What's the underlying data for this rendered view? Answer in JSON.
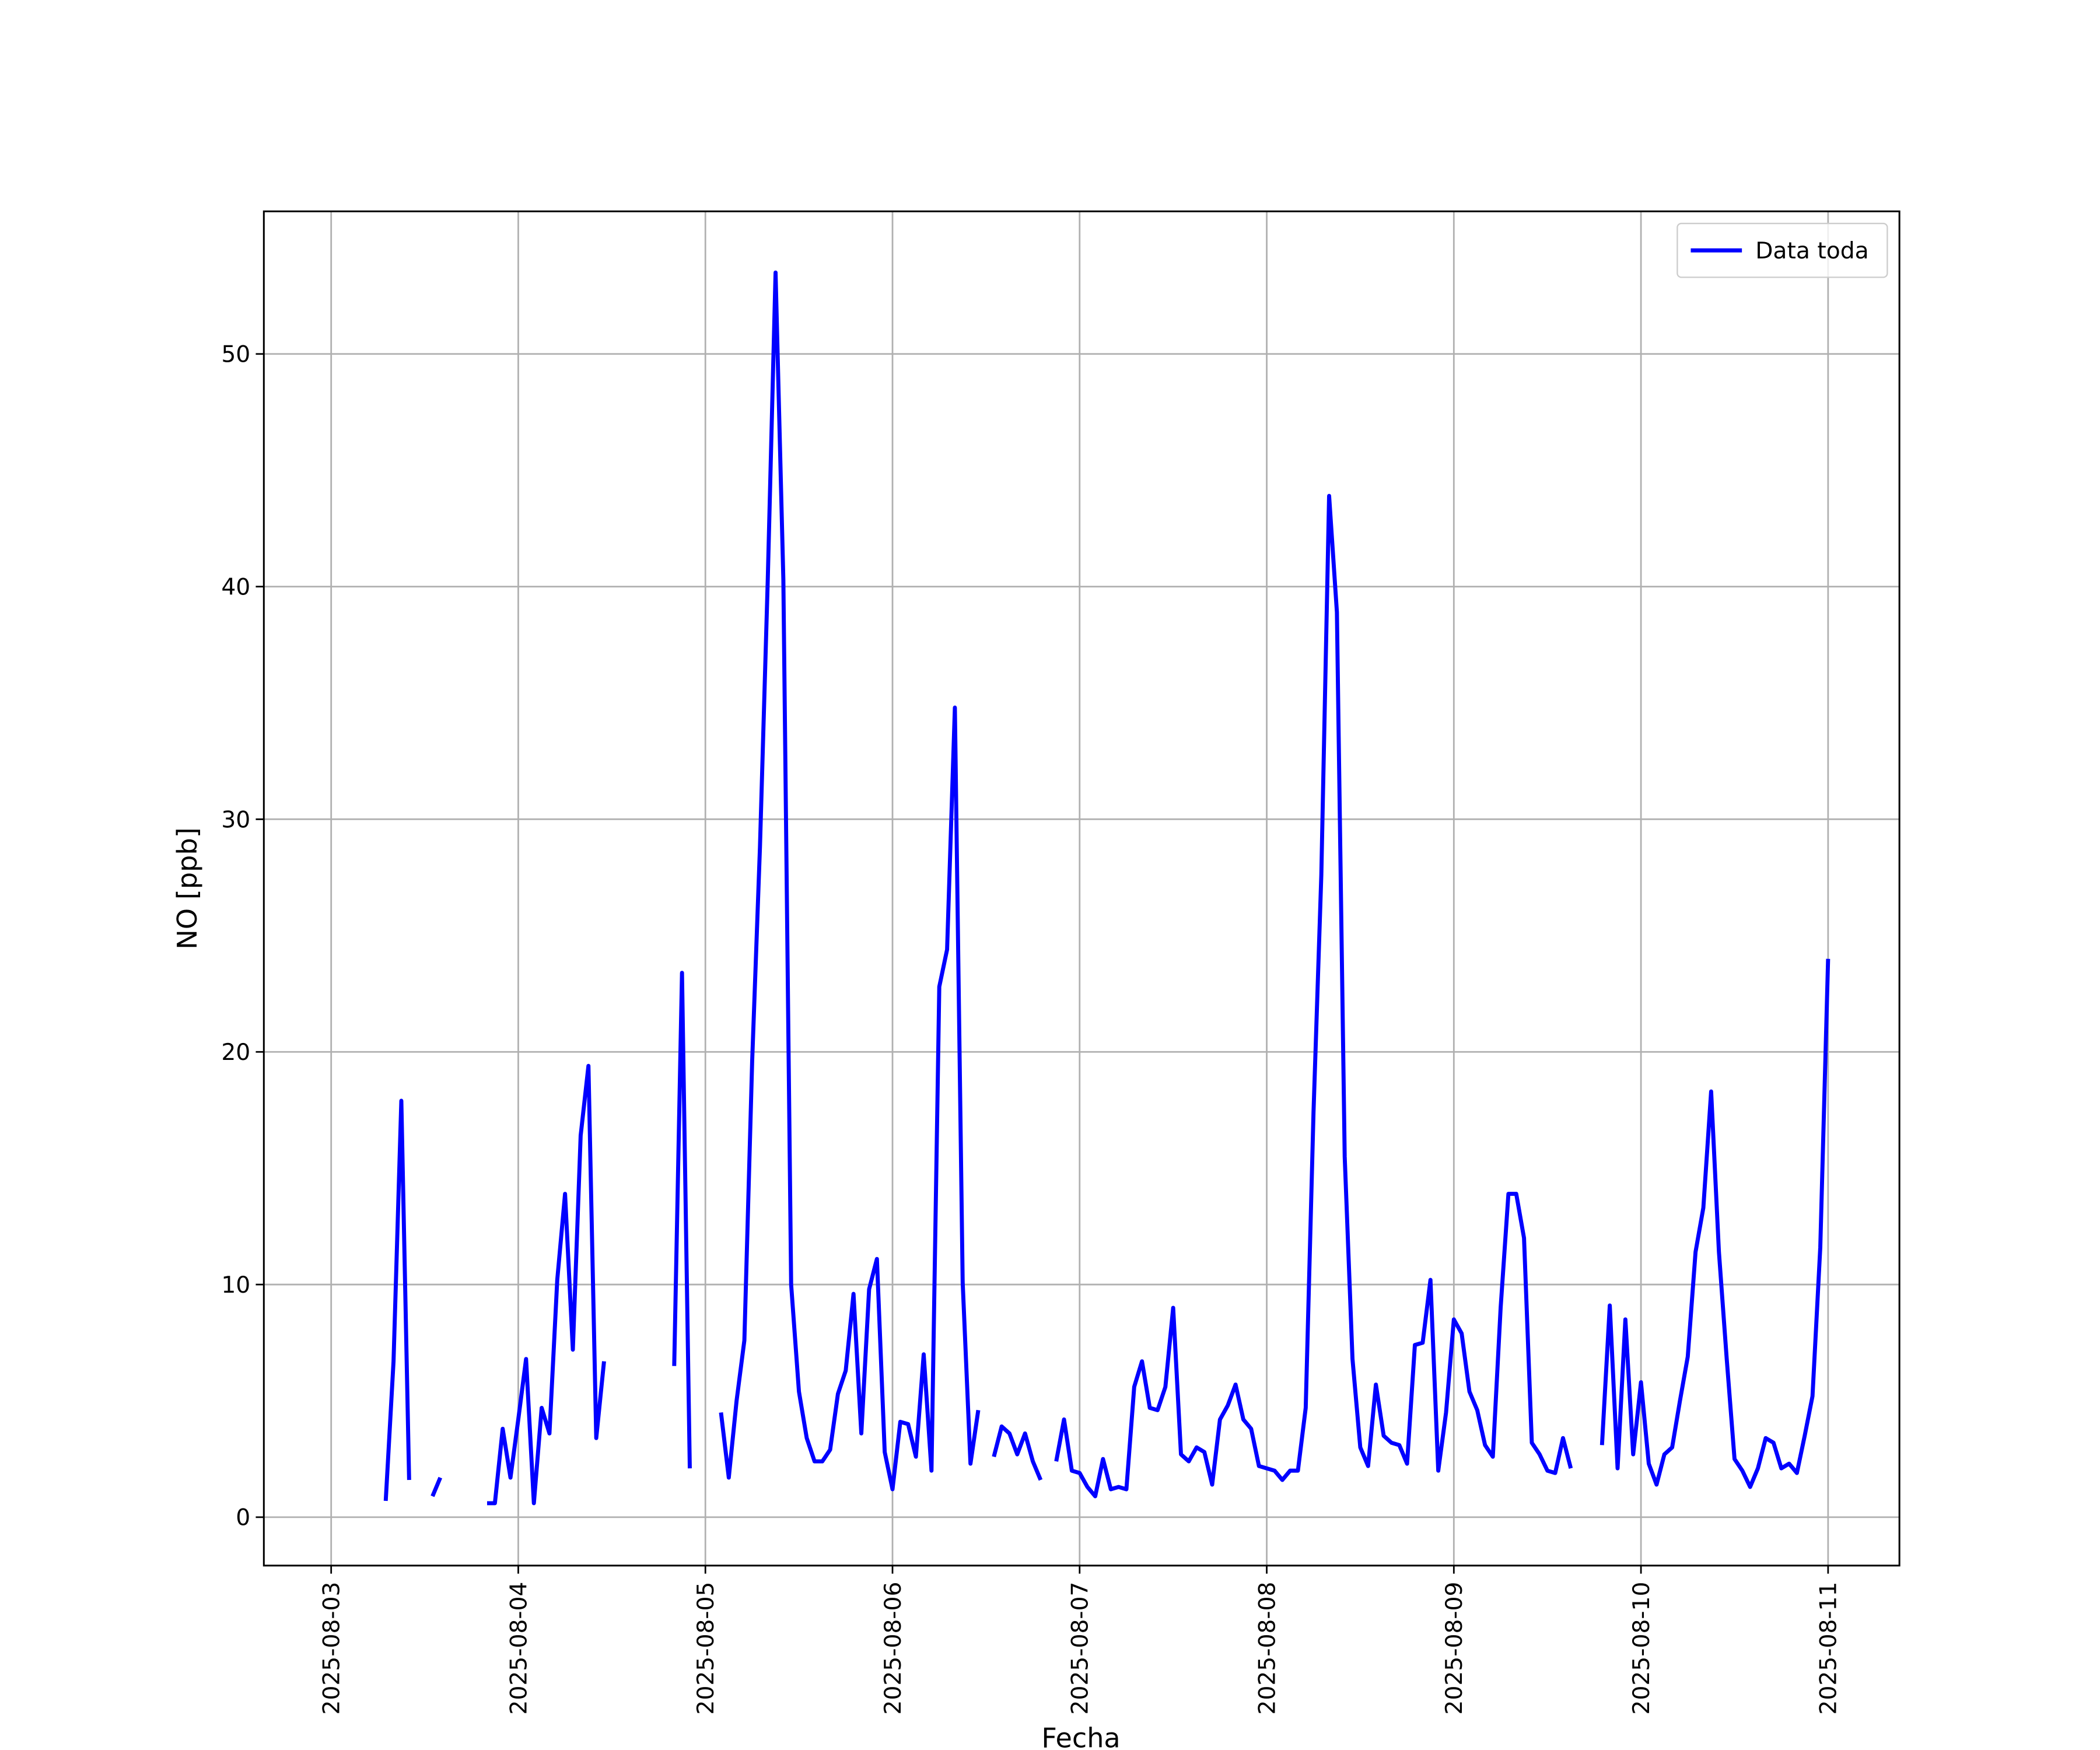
{
  "chart_data": {
    "type": "line",
    "xlabel": "Fecha",
    "ylabel": "NO [ppb]",
    "xlim": [
      "2025-08-02 15:22",
      "2025-08-11 09:09"
    ],
    "xticks": [
      "2025-08-03",
      "2025-08-04",
      "2025-08-05",
      "2025-08-06",
      "2025-08-07",
      "2025-08-08",
      "2025-08-09",
      "2025-08-10",
      "2025-08-11"
    ],
    "ylim": [
      -2.08,
      56.13
    ],
    "yticks": [
      0,
      10,
      20,
      30,
      40,
      50
    ],
    "grid": true,
    "legend": "upper right",
    "x": [
      "2025-08-03 07:00",
      "2025-08-03 08:00",
      "2025-08-03 09:00",
      "2025-08-03 10:00",
      "2025-08-03 11:00",
      "2025-08-03 12:00",
      "2025-08-03 13:00",
      "2025-08-03 14:00",
      "2025-08-03 15:00",
      "2025-08-03 16:00",
      "2025-08-03 17:00",
      "2025-08-03 18:00",
      "2025-08-03 19:00",
      "2025-08-03 20:00",
      "2025-08-03 21:00",
      "2025-08-03 22:00",
      "2025-08-03 23:00",
      "2025-08-04 00:00",
      "2025-08-04 01:00",
      "2025-08-04 02:00",
      "2025-08-04 03:00",
      "2025-08-04 04:00",
      "2025-08-04 05:00",
      "2025-08-04 06:00",
      "2025-08-04 07:00",
      "2025-08-04 08:00",
      "2025-08-04 09:00",
      "2025-08-04 10:00",
      "2025-08-04 11:00",
      "2025-08-04 12:00",
      "2025-08-04 13:00",
      "2025-08-04 14:00",
      "2025-08-04 15:00",
      "2025-08-04 16:00",
      "2025-08-04 17:00",
      "2025-08-04 18:00",
      "2025-08-04 19:00",
      "2025-08-04 20:00",
      "2025-08-04 21:00",
      "2025-08-04 22:00",
      "2025-08-04 23:00",
      "2025-08-05 00:00",
      "2025-08-05 01:00",
      "2025-08-05 02:00",
      "2025-08-05 03:00",
      "2025-08-05 04:00",
      "2025-08-05 05:00",
      "2025-08-05 06:00",
      "2025-08-05 07:00",
      "2025-08-05 08:00",
      "2025-08-05 09:00",
      "2025-08-05 10:00",
      "2025-08-05 11:00",
      "2025-08-05 12:00",
      "2025-08-05 13:00",
      "2025-08-05 14:00",
      "2025-08-05 15:00",
      "2025-08-05 16:00",
      "2025-08-05 17:00",
      "2025-08-05 18:00",
      "2025-08-05 19:00",
      "2025-08-05 20:00",
      "2025-08-05 21:00",
      "2025-08-05 22:00",
      "2025-08-05 23:00",
      "2025-08-06 00:00",
      "2025-08-06 01:00",
      "2025-08-06 02:00",
      "2025-08-06 03:00",
      "2025-08-06 04:00",
      "2025-08-06 05:00",
      "2025-08-06 06:00",
      "2025-08-06 07:00",
      "2025-08-06 08:00",
      "2025-08-06 09:00",
      "2025-08-06 10:00",
      "2025-08-06 11:00",
      "2025-08-06 12:00",
      "2025-08-06 13:00",
      "2025-08-06 14:00",
      "2025-08-06 15:00",
      "2025-08-06 16:00",
      "2025-08-06 17:00",
      "2025-08-06 18:00",
      "2025-08-06 19:00",
      "2025-08-06 20:00",
      "2025-08-06 21:00",
      "2025-08-06 22:00",
      "2025-08-06 23:00",
      "2025-08-07 00:00",
      "2025-08-07 01:00",
      "2025-08-07 02:00",
      "2025-08-07 03:00",
      "2025-08-07 04:00",
      "2025-08-07 05:00",
      "2025-08-07 06:00",
      "2025-08-07 07:00",
      "2025-08-07 08:00",
      "2025-08-07 09:00",
      "2025-08-07 10:00",
      "2025-08-07 11:00",
      "2025-08-07 12:00",
      "2025-08-07 13:00",
      "2025-08-07 14:00",
      "2025-08-07 15:00",
      "2025-08-07 16:00",
      "2025-08-07 17:00",
      "2025-08-07 18:00",
      "2025-08-07 19:00",
      "2025-08-07 20:00",
      "2025-08-07 21:00",
      "2025-08-07 22:00",
      "2025-08-07 23:00",
      "2025-08-08 00:00",
      "2025-08-08 01:00",
      "2025-08-08 02:00",
      "2025-08-08 03:00",
      "2025-08-08 04:00",
      "2025-08-08 05:00",
      "2025-08-08 06:00",
      "2025-08-08 07:00",
      "2025-08-08 08:00",
      "2025-08-08 09:00",
      "2025-08-08 10:00",
      "2025-08-08 11:00",
      "2025-08-08 12:00",
      "2025-08-08 13:00",
      "2025-08-08 14:00",
      "2025-08-08 15:00",
      "2025-08-08 16:00",
      "2025-08-08 17:00",
      "2025-08-08 18:00",
      "2025-08-08 19:00",
      "2025-08-08 20:00",
      "2025-08-08 21:00",
      "2025-08-08 22:00",
      "2025-08-08 23:00",
      "2025-08-09 00:00",
      "2025-08-09 01:00",
      "2025-08-09 02:00",
      "2025-08-09 03:00",
      "2025-08-09 04:00",
      "2025-08-09 05:00",
      "2025-08-09 06:00",
      "2025-08-09 07:00",
      "2025-08-09 08:00",
      "2025-08-09 09:00",
      "2025-08-09 10:00",
      "2025-08-09 11:00",
      "2025-08-09 12:00",
      "2025-08-09 13:00",
      "2025-08-09 14:00",
      "2025-08-09 15:00",
      "2025-08-09 16:00",
      "2025-08-09 17:00",
      "2025-08-09 18:00",
      "2025-08-09 19:00",
      "2025-08-09 20:00",
      "2025-08-09 21:00",
      "2025-08-09 22:00",
      "2025-08-09 23:00",
      "2025-08-10 00:00",
      "2025-08-10 01:00",
      "2025-08-10 02:00",
      "2025-08-10 03:00",
      "2025-08-10 04:00",
      "2025-08-10 05:00",
      "2025-08-10 06:00",
      "2025-08-10 07:00",
      "2025-08-10 08:00",
      "2025-08-10 09:00",
      "2025-08-10 10:00",
      "2025-08-10 11:00",
      "2025-08-10 12:00",
      "2025-08-10 13:00",
      "2025-08-10 14:00",
      "2025-08-10 15:00",
      "2025-08-10 16:00",
      "2025-08-10 17:00",
      "2025-08-10 18:00",
      "2025-08-10 19:00",
      "2025-08-10 20:00",
      "2025-08-10 21:00",
      "2025-08-10 22:00",
      "2025-08-10 23:00",
      "2025-08-11 00:00"
    ],
    "series": [
      {
        "name": "Data toda",
        "color": "#0000ff",
        "values": [
          0.7,
          6.7,
          17.9,
          1.6,
          null,
          null,
          0.9,
          1.7,
          null,
          null,
          null,
          null,
          null,
          0.6,
          0.6,
          3.8,
          1.7,
          4.2,
          6.8,
          0.6,
          4.7,
          3.6,
          10.2,
          13.9,
          7.2,
          16.4,
          19.4,
          3.4,
          6.7,
          null,
          null,
          null,
          null,
          null,
          null,
          null,
          null,
          6.5,
          23.4,
          2.1,
          null,
          null,
          null,
          4.5,
          1.7,
          5.0,
          7.6,
          19.6,
          28.8,
          40.3,
          53.5,
          40.3,
          10.0,
          5.4,
          3.4,
          2.4,
          2.4,
          2.9,
          5.3,
          6.3,
          9.6,
          3.6,
          9.8,
          11.1,
          2.8,
          1.2,
          4.1,
          4.0,
          2.6,
          7.0,
          2.0,
          22.8,
          24.4,
          34.8,
          10.1,
          2.3,
          4.6,
          null,
          2.6,
          3.9,
          3.6,
          2.7,
          3.6,
          2.4,
          1.6,
          null,
          2.4,
          4.2,
          2.0,
          1.9,
          1.3,
          0.9,
          2.5,
          1.2,
          1.3,
          1.2,
          5.6,
          6.7,
          4.7,
          4.6,
          5.6,
          9.0,
          2.7,
          2.4,
          3.0,
          2.8,
          1.4,
          4.2,
          4.8,
          5.7,
          4.2,
          3.8,
          2.2,
          2.1,
          2.0,
          1.6,
          2.0,
          2.0,
          4.7,
          17.4,
          27.6,
          43.9,
          38.9,
          15.5,
          6.8,
          3.0,
          2.2,
          5.7,
          3.5,
          3.2,
          3.1,
          2.3,
          7.4,
          7.5,
          10.2,
          2.0,
          4.5,
          8.5,
          7.9,
          5.4,
          4.6,
          3.1,
          2.6,
          9.0,
          13.9,
          13.9,
          12.0,
          3.2,
          2.7,
          2.0,
          1.9,
          3.4,
          2.1,
          null,
          null,
          null,
          3.1,
          9.1,
          2.1,
          8.5,
          2.7,
          5.8,
          2.3,
          1.4,
          2.7,
          3.0,
          5.0,
          6.9,
          11.4,
          13.3,
          18.3,
          11.4,
          6.8,
          2.5,
          2.0,
          1.3,
          2.1,
          3.4,
          3.2,
          2.1,
          2.3,
          1.9,
          3.5,
          5.2,
          11.6,
          24.0
        ]
      }
    ]
  }
}
